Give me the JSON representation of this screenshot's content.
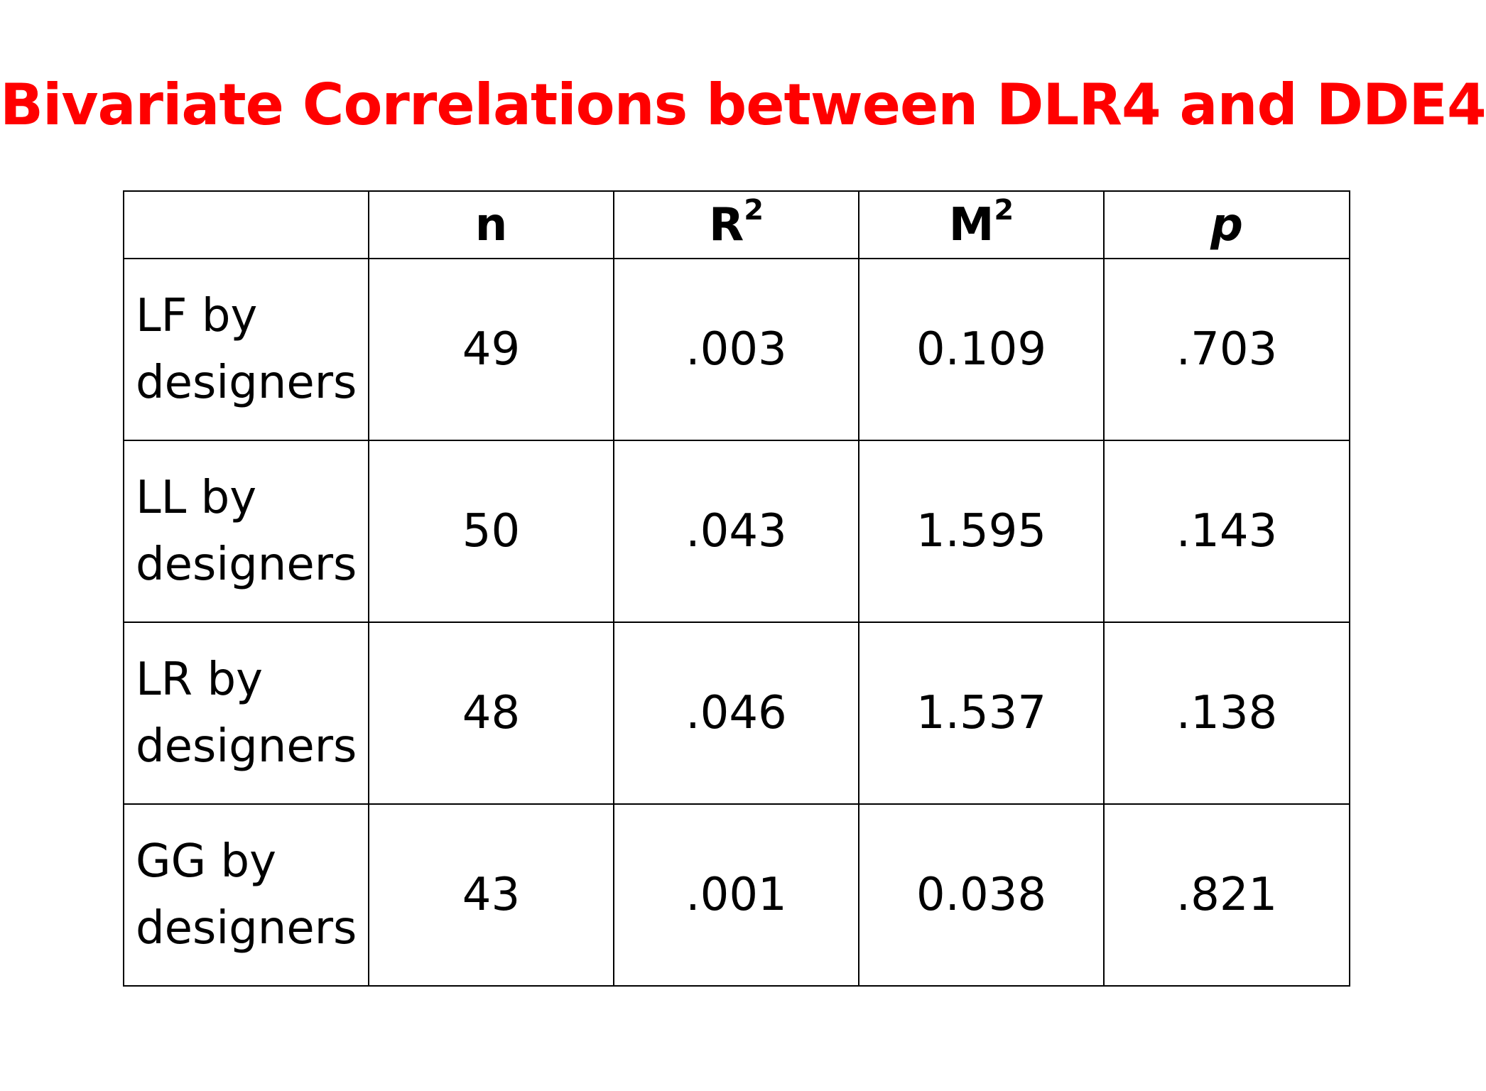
{
  "title": "Bivariate Correlations between DLR4 and DDE4",
  "table": {
    "headers": {
      "corner": "",
      "n": "n",
      "r2_base": "R",
      "r2_sup": "2",
      "m2_base": "M",
      "m2_sup": "2",
      "p": "p"
    },
    "rows": [
      {
        "label_line1": "LF by",
        "label_line2": "designers",
        "n": "49",
        "r2": ".003",
        "m2": "0.109",
        "p": ".703"
      },
      {
        "label_line1": "LL by",
        "label_line2": "designers",
        "n": "50",
        "r2": ".043",
        "m2": "1.595",
        "p": ".143"
      },
      {
        "label_line1": "LR by",
        "label_line2": "designers",
        "n": "48",
        "r2": ".046",
        "m2": "1.537",
        "p": ".138"
      },
      {
        "label_line1": "GG by",
        "label_line2": "designers",
        "n": "43",
        "r2": ".001",
        "m2": "0.038",
        "p": ".821"
      }
    ]
  },
  "colors": {
    "title": "#ff0000",
    "text": "#000000",
    "border": "#000000",
    "background": "#ffffff"
  }
}
